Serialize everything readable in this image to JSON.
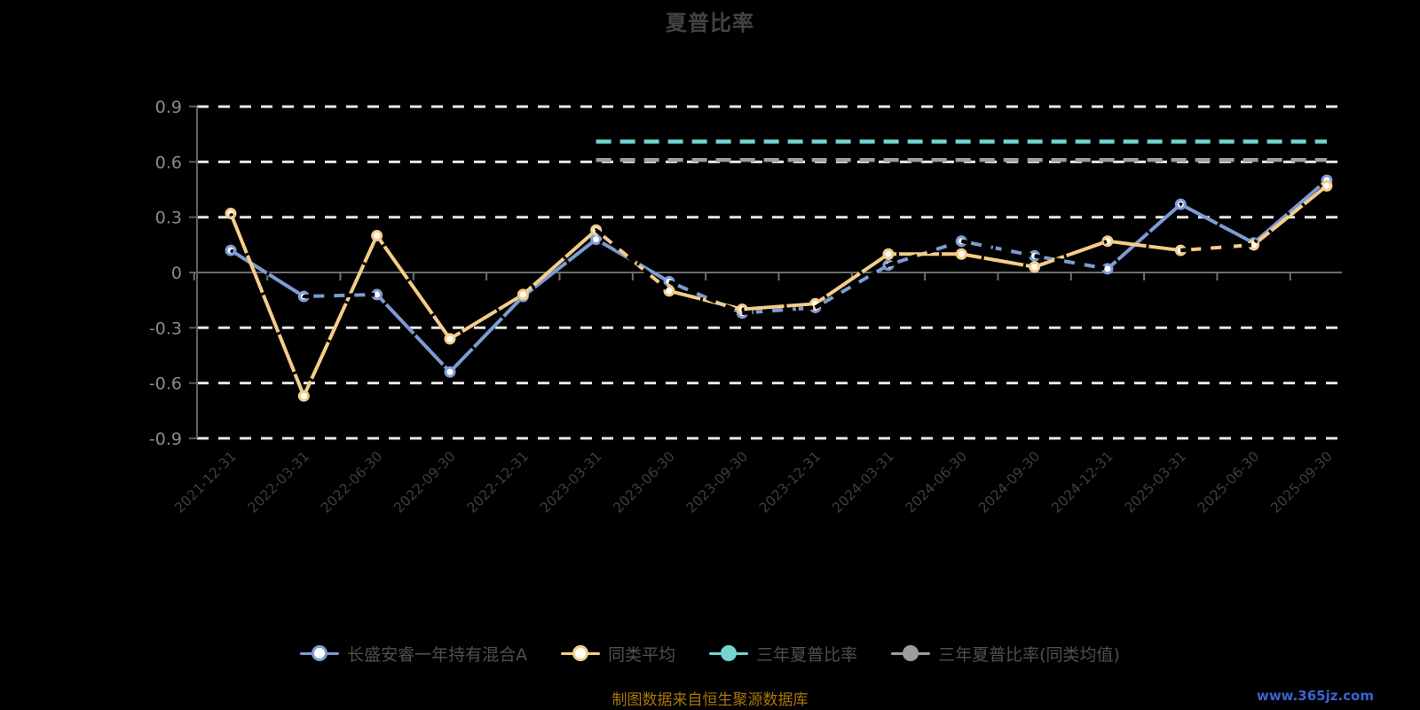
{
  "title": "夏普比率",
  "footer": {
    "source_note": "制图数据来自恒生聚源数据库",
    "watermark": "www.365jz.com"
  },
  "colors": {
    "background": "#000000",
    "title_text": "#424245",
    "y_axis_label": "#8a8a8a",
    "x_axis_label": "#3e3e3e",
    "grid_line": "#e8e8e8",
    "zero_line": "#707070",
    "axis_line": "#5f5f5f",
    "legend_text": "#4f4f4f",
    "footer_text": "#a8760c",
    "watermark_text": "#3c63cc",
    "marker_fill": "#ffffff",
    "dash_overlay": "#000000"
  },
  "chart_data": {
    "type": "line",
    "categories": [
      "2021-12-31",
      "2022-03-31",
      "2022-06-30",
      "2022-09-30",
      "2022-12-31",
      "2023-03-31",
      "2023-06-30",
      "2023-09-30",
      "2023-12-31",
      "2024-03-31",
      "2024-06-30",
      "2024-09-30",
      "2024-12-31",
      "2025-03-31",
      "2025-06-30",
      "2025-09-30"
    ],
    "ylim": [
      -0.9,
      0.9
    ],
    "yticks": [
      0.9,
      0.6,
      0.3,
      0,
      -0.3,
      -0.6,
      -0.9
    ],
    "grid": "horizontal-dashed-white",
    "legend_position": "bottom",
    "series": [
      {
        "name": "长盛安睿一年持有混合A",
        "color": "#7d9bd4",
        "line_style": "solid-with-dark-dash-overlay",
        "marker": "circle-hollow",
        "values": [
          0.12,
          -0.13,
          -0.12,
          -0.54,
          -0.13,
          0.18,
          -0.05,
          -0.22,
          -0.19,
          0.04,
          0.17,
          0.09,
          0.02,
          0.37,
          0.16,
          0.5
        ],
        "dash_overlay_segments": [
          [
            1,
            2
          ],
          [
            6,
            7
          ],
          [
            7,
            8
          ],
          [
            8,
            9
          ],
          [
            9,
            10
          ],
          [
            10,
            11
          ],
          [
            11,
            12
          ]
        ]
      },
      {
        "name": "同类平均",
        "color": "#f5cd87",
        "line_style": "solid-with-dark-dash-overlay",
        "marker": "circle-hollow",
        "values": [
          0.32,
          -0.67,
          0.2,
          -0.36,
          -0.12,
          0.23,
          -0.1,
          -0.2,
          -0.17,
          0.1,
          0.1,
          0.03,
          0.17,
          0.12,
          0.15,
          0.47
        ],
        "dash_overlay_segments": [
          [
            5,
            6
          ],
          [
            13,
            14
          ]
        ]
      },
      {
        "name": "三年夏普比率",
        "color": "#72d5d2",
        "line_style": "dashed-horizontal",
        "marker": "none",
        "values": [
          null,
          null,
          null,
          null,
          null,
          0.71,
          0.71,
          0.71,
          0.71,
          0.71,
          0.71,
          0.71,
          0.71,
          0.71,
          0.71,
          0.71
        ]
      },
      {
        "name": "三年夏普比率(同类均值)",
        "color": "#9c9c9c",
        "line_style": "dashed-horizontal",
        "marker": "none",
        "values": [
          null,
          null,
          null,
          null,
          null,
          0.61,
          0.61,
          0.61,
          0.61,
          0.61,
          0.61,
          0.61,
          0.61,
          0.61,
          0.61,
          0.61
        ]
      }
    ]
  }
}
